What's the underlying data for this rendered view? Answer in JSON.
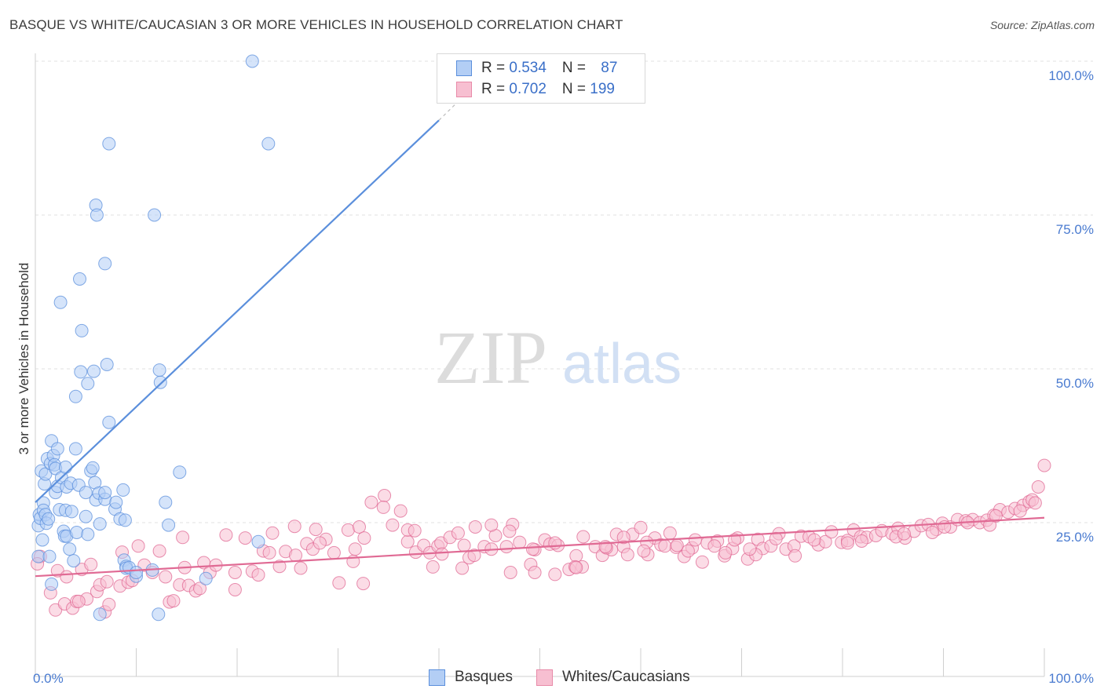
{
  "title": "BASQUE VS WHITE/CAUCASIAN 3 OR MORE VEHICLES IN HOUSEHOLD CORRELATION CHART",
  "source": "Source: ZipAtlas.com",
  "watermark": {
    "zip": "ZIP",
    "atlas": "atlas"
  },
  "legend_top": [
    {
      "r_label": "R = ",
      "r_value": "0.534",
      "n_label": "N = ",
      "n_value": "87",
      "fill": "#b3cef5",
      "stroke": "#5b8fdc"
    },
    {
      "r_label": "R = ",
      "r_value": "0.702",
      "n_label": "N = ",
      "n_value": "199",
      "fill": "#f7bfd1",
      "stroke": "#e88aa8"
    }
  ],
  "legend_bottom": [
    {
      "label": "Basques",
      "fill": "#b3cef5",
      "stroke": "#5b8fdc"
    },
    {
      "label": "Whites/Caucasians",
      "fill": "#f7bfd1",
      "stroke": "#e88aa8"
    }
  ],
  "chart_data": {
    "type": "scatter",
    "ylabel": "3 or more Vehicles in Household",
    "x_tick_labels": [
      "0.0%",
      "100.0%"
    ],
    "y_tick_labels": [
      "25.0%",
      "50.0%",
      "75.0%",
      "100.0%"
    ],
    "xlim": [
      0,
      100
    ],
    "ylim": [
      0,
      100
    ],
    "grid": true,
    "legend_placement": "top-center",
    "series": [
      {
        "name": "Basques",
        "color": "#5b8fdc",
        "fill": "#b3cef5",
        "trend": {
          "x": [
            0,
            40
          ],
          "y": [
            28.3,
            90.4
          ],
          "dash_to": [
            43.5,
            96
          ]
        },
        "points": [
          [
            0.3,
            19.5
          ],
          [
            0.3,
            24.5
          ],
          [
            0.4,
            26.3
          ],
          [
            0.5,
            25.7
          ],
          [
            0.6,
            33.4
          ],
          [
            0.7,
            22.2
          ],
          [
            0.8,
            28.2
          ],
          [
            0.8,
            27
          ],
          [
            0.9,
            31.3
          ],
          [
            1,
            32.9
          ],
          [
            1,
            26.3
          ],
          [
            1.1,
            24.9
          ],
          [
            1.2,
            35.4
          ],
          [
            1.3,
            25.6
          ],
          [
            1.4,
            19.5
          ],
          [
            1.5,
            34.6
          ],
          [
            1.6,
            15
          ],
          [
            1.6,
            38.3
          ],
          [
            1.8,
            35.9
          ],
          [
            1.9,
            34.4
          ],
          [
            2,
            29.9
          ],
          [
            2,
            33.8
          ],
          [
            2.2,
            30.9
          ],
          [
            2.2,
            37
          ],
          [
            2.4,
            27.1
          ],
          [
            2.5,
            60.8
          ],
          [
            2.6,
            32.3
          ],
          [
            2.8,
            23.6
          ],
          [
            2.9,
            22.8
          ],
          [
            3,
            27
          ],
          [
            3,
            34
          ],
          [
            3.1,
            30.8
          ],
          [
            3.1,
            22.8
          ],
          [
            3.4,
            20.7
          ],
          [
            3.5,
            31.4
          ],
          [
            3.6,
            26.8
          ],
          [
            3.8,
            18.8
          ],
          [
            4,
            45.5
          ],
          [
            4,
            37
          ],
          [
            4.1,
            23.4
          ],
          [
            4.3,
            31.1
          ],
          [
            4.4,
            64.6
          ],
          [
            4.5,
            49.5
          ],
          [
            4.6,
            56.2
          ],
          [
            5,
            26
          ],
          [
            5,
            29.9
          ],
          [
            5.2,
            47.6
          ],
          [
            5.2,
            23.1
          ],
          [
            5.5,
            33.4
          ],
          [
            5.7,
            33.9
          ],
          [
            5.8,
            49.6
          ],
          [
            5.9,
            31.5
          ],
          [
            6,
            28.7
          ],
          [
            6,
            76.6
          ],
          [
            6.1,
            75
          ],
          [
            6.3,
            29.8
          ],
          [
            6.4,
            10.1
          ],
          [
            6.4,
            24.8
          ],
          [
            6.9,
            28.8
          ],
          [
            6.9,
            29.9
          ],
          [
            6.9,
            67.1
          ],
          [
            7.1,
            50.7
          ],
          [
            7.3,
            41.3
          ],
          [
            7.3,
            86.6
          ],
          [
            7.9,
            27.2
          ],
          [
            8,
            28.3
          ],
          [
            8.4,
            25.6
          ],
          [
            8.7,
            30.3
          ],
          [
            8.8,
            18.9
          ],
          [
            8.9,
            25.4
          ],
          [
            9,
            17.9
          ],
          [
            9,
            17.6
          ],
          [
            9.3,
            17.7
          ],
          [
            10,
            16.3
          ],
          [
            10,
            16.9
          ],
          [
            11.6,
            17.3
          ],
          [
            11.8,
            75
          ],
          [
            12.2,
            10.1
          ],
          [
            12.3,
            49.8
          ],
          [
            12.4,
            47.8
          ],
          [
            12.9,
            28.3
          ],
          [
            13.2,
            24.6
          ],
          [
            14.3,
            33.2
          ],
          [
            16.9,
            15.9
          ],
          [
            21.5,
            100
          ],
          [
            22.1,
            21.9
          ],
          [
            23.1,
            86.6
          ]
        ]
      },
      {
        "name": "Whites/Caucasians",
        "color": "#e06a94",
        "fill": "#f7bfd1",
        "trend": {
          "x": [
            0,
            100
          ],
          "y": [
            16.3,
            25.8
          ]
        },
        "points": [
          [
            0.5,
            19.5
          ],
          [
            1.5,
            13.6
          ],
          [
            2,
            10.8
          ],
          [
            2.2,
            17.2
          ],
          [
            2.9,
            11.8
          ],
          [
            3.1,
            16.2
          ],
          [
            3.7,
            11.1
          ],
          [
            4.1,
            12.2
          ],
          [
            4.6,
            17.4
          ],
          [
            5.1,
            12.6
          ],
          [
            5.5,
            18.2
          ],
          [
            6.1,
            13.8
          ],
          [
            6.4,
            14.9
          ],
          [
            6.9,
            10.5
          ],
          [
            7.1,
            15.4
          ],
          [
            7.3,
            11.7
          ],
          [
            8.4,
            14.7
          ],
          [
            9.2,
            15.3
          ],
          [
            9.6,
            15.6
          ],
          [
            10.2,
            21.2
          ],
          [
            10.8,
            18.1
          ],
          [
            11.6,
            16.9
          ],
          [
            12.3,
            20.4
          ],
          [
            12.9,
            16.2
          ],
          [
            13.3,
            12.1
          ],
          [
            13.7,
            12.3
          ],
          [
            14.3,
            14.9
          ],
          [
            14.8,
            17.7
          ],
          [
            15.2,
            14.8
          ],
          [
            15.9,
            13.9
          ],
          [
            16.7,
            18.5
          ],
          [
            17.3,
            16.9
          ],
          [
            17.9,
            18.1
          ],
          [
            18.9,
            23
          ],
          [
            19.8,
            14.1
          ],
          [
            20.8,
            22.5
          ],
          [
            21.5,
            17.1
          ],
          [
            22.1,
            16.5
          ],
          [
            22.6,
            20.4
          ],
          [
            23.5,
            23.3
          ],
          [
            24.2,
            17.9
          ],
          [
            24.8,
            20.3
          ],
          [
            25.7,
            24.4
          ],
          [
            26.3,
            17.6
          ],
          [
            26.9,
            21.6
          ],
          [
            27.8,
            23.9
          ],
          [
            28.8,
            22.3
          ],
          [
            29.6,
            20.1
          ],
          [
            30.1,
            15.2
          ],
          [
            31,
            23.8
          ],
          [
            31.7,
            20.7
          ],
          [
            32.1,
            24.3
          ],
          [
            32.6,
            22.5
          ],
          [
            33.3,
            28.3
          ],
          [
            34.6,
            29.4
          ],
          [
            35.4,
            24.6
          ],
          [
            36.2,
            26.9
          ],
          [
            36.9,
            21.9
          ],
          [
            37.7,
            20.2
          ],
          [
            38.5,
            21.3
          ],
          [
            39.1,
            20.1
          ],
          [
            39.9,
            21.2
          ],
          [
            40.2,
            21.7
          ],
          [
            41.1,
            22.6
          ],
          [
            41.9,
            23.3
          ],
          [
            42.5,
            21.3
          ],
          [
            43,
            19.3
          ],
          [
            43.6,
            24.3
          ],
          [
            44.5,
            21.1
          ],
          [
            45.2,
            20.7
          ],
          [
            45.6,
            22.9
          ],
          [
            46.7,
            21.1
          ],
          [
            47.3,
            24.7
          ],
          [
            48,
            21.8
          ],
          [
            49.1,
            18.2
          ],
          [
            49.5,
            20.6
          ],
          [
            50.5,
            22.2
          ],
          [
            51,
            21.5
          ],
          [
            51.8,
            21.3
          ],
          [
            52.9,
            17.4
          ],
          [
            53.6,
            19.6
          ],
          [
            54.3,
            22.7
          ],
          [
            55.5,
            21.1
          ],
          [
            56.2,
            19.7
          ],
          [
            57.1,
            20.6
          ],
          [
            57.6,
            23.1
          ],
          [
            58.3,
            21.1
          ],
          [
            59.2,
            23.1
          ],
          [
            60,
            24.2
          ],
          [
            60.7,
            19.8
          ],
          [
            61.4,
            22.5
          ],
          [
            62,
            21.4
          ],
          [
            62.9,
            23.3
          ],
          [
            63.5,
            21
          ],
          [
            64.3,
            19.5
          ],
          [
            65.1,
            20.9
          ],
          [
            66.1,
            18.6
          ],
          [
            66.6,
            21.7
          ],
          [
            67.6,
            22
          ],
          [
            68.3,
            19.6
          ],
          [
            69.1,
            20.8
          ],
          [
            69.6,
            22.5
          ],
          [
            70.6,
            19.1
          ],
          [
            71.6,
            22.3
          ],
          [
            72.1,
            20.8
          ],
          [
            72.9,
            21.2
          ],
          [
            73.7,
            23.2
          ],
          [
            74.4,
            20.7
          ],
          [
            75.2,
            21.2
          ],
          [
            75.9,
            22.8
          ],
          [
            76.7,
            22.7
          ],
          [
            77.6,
            21.4
          ],
          [
            78.3,
            21.9
          ],
          [
            78.9,
            23.5
          ],
          [
            79.9,
            21.8
          ],
          [
            80.5,
            22.1
          ],
          [
            81.1,
            23.8
          ],
          [
            81.8,
            22.7
          ],
          [
            82.4,
            22.6
          ],
          [
            83.3,
            22.9
          ],
          [
            83.9,
            23.7
          ],
          [
            84.9,
            23.2
          ],
          [
            85.5,
            24.1
          ],
          [
            86.2,
            22.5
          ],
          [
            87.1,
            23.6
          ],
          [
            87.8,
            24.5
          ],
          [
            88.5,
            24.7
          ],
          [
            89.3,
            23.9
          ],
          [
            89.9,
            24.9
          ],
          [
            90.7,
            24.3
          ],
          [
            91.4,
            25.5
          ],
          [
            92.2,
            25.3
          ],
          [
            92.9,
            25.5
          ],
          [
            93.6,
            25
          ],
          [
            94.3,
            25.4
          ],
          [
            95,
            26.2
          ],
          [
            95.6,
            27.1
          ],
          [
            96.4,
            26.7
          ],
          [
            97.1,
            27.3
          ],
          [
            97.9,
            27.8
          ],
          [
            98.5,
            28.4
          ],
          [
            98.8,
            28.7
          ],
          [
            99.4,
            30.8
          ],
          [
            100,
            34.3
          ],
          [
            4.3,
            12.2
          ],
          [
            14.6,
            22.6
          ],
          [
            23.2,
            20.1
          ],
          [
            27.5,
            20.7
          ],
          [
            31.5,
            18.7
          ],
          [
            36.9,
            23.8
          ],
          [
            40.3,
            19.9
          ],
          [
            45.2,
            24.6
          ],
          [
            49.3,
            20.7
          ],
          [
            54.2,
            17.8
          ],
          [
            58.7,
            19.8
          ],
          [
            62.4,
            21.2
          ],
          [
            67.3,
            21.2
          ],
          [
            71.4,
            19.8
          ],
          [
            75.3,
            19.6
          ],
          [
            80.5,
            21.7
          ],
          [
            85.3,
            22.7
          ],
          [
            90.1,
            24.3
          ],
          [
            94.6,
            24.6
          ],
          [
            97.6,
            26.9
          ],
          [
            0.2,
            18.3
          ],
          [
            8.6,
            20.2
          ],
          [
            16.3,
            14.3
          ],
          [
            19.8,
            16.9
          ],
          [
            25.8,
            19.7
          ],
          [
            28.2,
            21.7
          ],
          [
            34.5,
            27.5
          ],
          [
            37.6,
            23.7
          ],
          [
            42.3,
            17.6
          ],
          [
            47,
            23.6
          ],
          [
            51.5,
            21.7
          ],
          [
            53.5,
            17.8
          ],
          [
            56.6,
            20.9
          ],
          [
            60.6,
            21.8
          ],
          [
            64.7,
            20.4
          ],
          [
            69.3,
            22.2
          ],
          [
            73.4,
            22.4
          ],
          [
            77.2,
            22.2
          ],
          [
            81.9,
            22
          ],
          [
            86.1,
            23.2
          ],
          [
            88.9,
            23.4
          ],
          [
            92.4,
            25
          ],
          [
            95.2,
            26.1
          ],
          [
            99.1,
            28.2
          ],
          [
            32.5,
            15.1
          ],
          [
            39.4,
            17.8
          ],
          [
            43.5,
            19.7
          ],
          [
            47.1,
            16.9
          ],
          [
            49.5,
            16.9
          ],
          [
            51.5,
            16.6
          ],
          [
            53.6,
            17.7
          ],
          [
            56.5,
            21.1
          ],
          [
            58.3,
            22.6
          ],
          [
            60.3,
            20.4
          ],
          [
            63.6,
            21.3
          ],
          [
            65.4,
            22.2
          ],
          [
            68.4,
            20.1
          ],
          [
            70.8,
            20.7
          ]
        ]
      }
    ]
  }
}
